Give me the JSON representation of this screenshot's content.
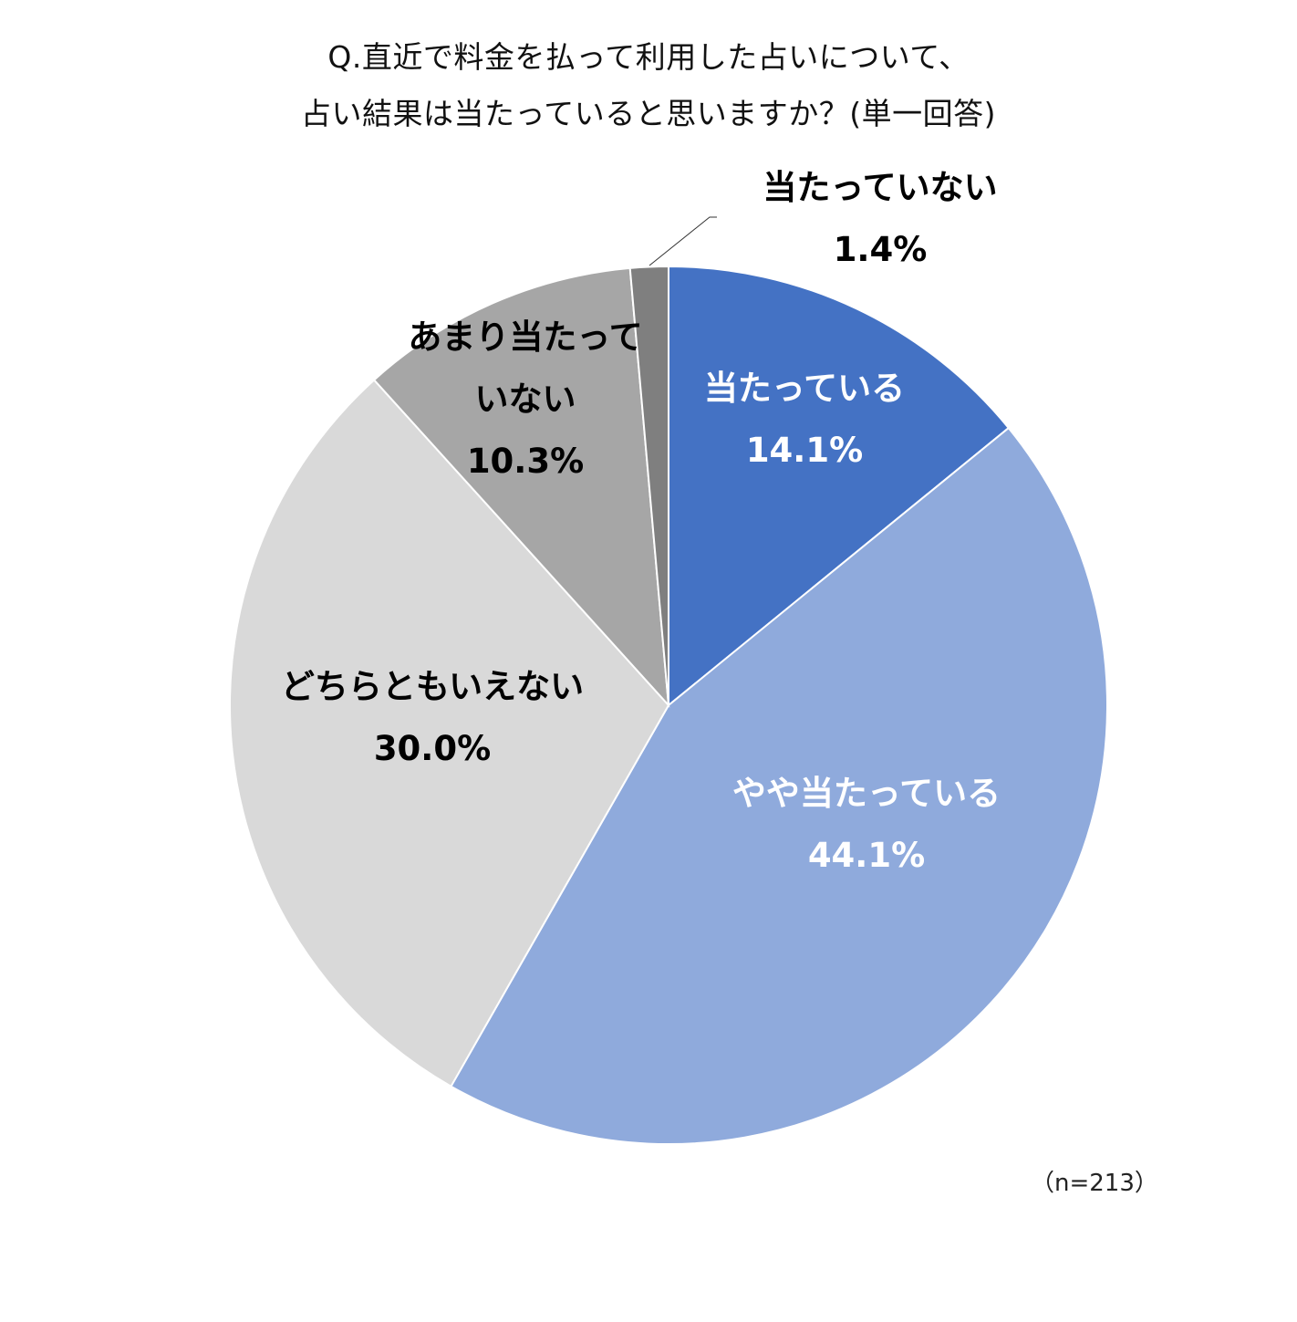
{
  "title": {
    "line1": "Q.直近で料金を払って利用した占いについて、",
    "line2": "占い結果は当たっていると思いますか？(単一回答)"
  },
  "note": "（n=213）",
  "chart_data": {
    "type": "pie",
    "start": "12 o'clock, clockwise",
    "slices": [
      {
        "label": "当たっている",
        "value": 14.1,
        "value_text": "14.1%",
        "color": "#4472C4",
        "text_color": "#ffffff"
      },
      {
        "label": "やや当たっている",
        "value": 44.1,
        "value_text": "44.1%",
        "color": "#8FAADC",
        "text_color": "#ffffff"
      },
      {
        "label": "どちらともいえない",
        "value": 30.0,
        "value_text": "30.0%",
        "color": "#D9D9D9",
        "text_color": "#000000"
      },
      {
        "label": "あまり当たって\nいない",
        "value": 10.3,
        "value_text": "10.3%",
        "color": "#A6A6A6",
        "text_color": "#000000"
      },
      {
        "label": "当たっていない",
        "value": 1.4,
        "value_text": "1.4%",
        "color": "#7F7F7F",
        "text_color": "#000000"
      }
    ]
  }
}
